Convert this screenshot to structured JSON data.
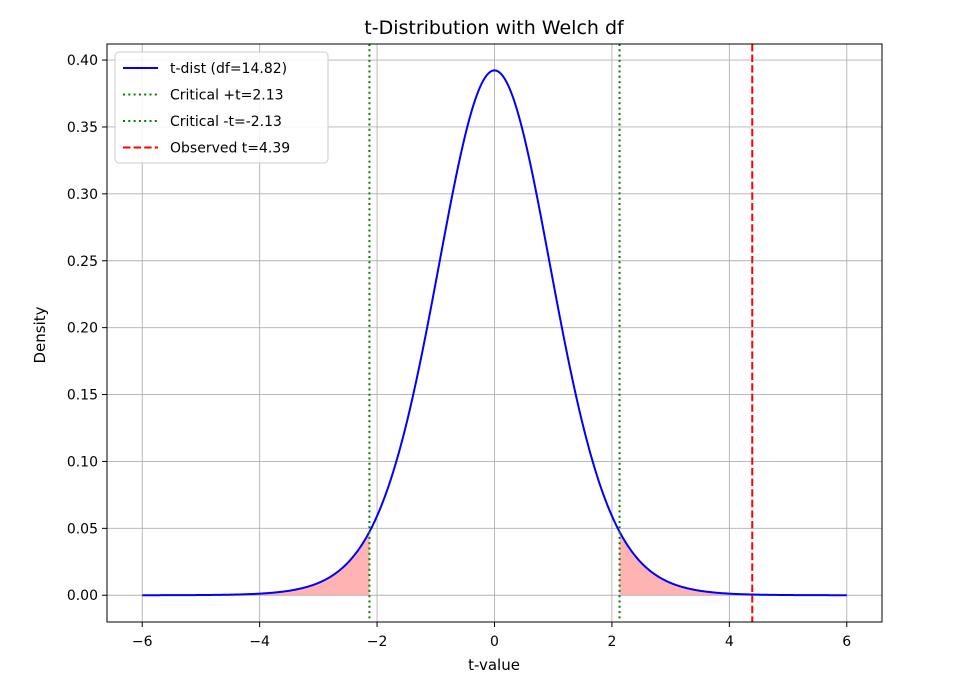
{
  "chart_data": {
    "type": "line",
    "title": "t-Distribution with Welch df",
    "xlabel": "t-value",
    "ylabel": "Density",
    "xlim": [
      -6.6,
      6.6
    ],
    "ylim": [
      -0.02,
      0.412
    ],
    "xticks": [
      -6,
      -4,
      -2,
      0,
      2,
      4,
      6
    ],
    "xtick_labels": [
      "−6",
      "−4",
      "−2",
      "0",
      "2",
      "4",
      "6"
    ],
    "yticks": [
      0.0,
      0.05,
      0.1,
      0.15,
      0.2,
      0.25,
      0.3,
      0.35,
      0.4
    ],
    "ytick_labels": [
      "0.00",
      "0.05",
      "0.10",
      "0.15",
      "0.20",
      "0.25",
      "0.30",
      "0.35",
      "0.40"
    ],
    "grid": true,
    "legend_position": "top-left",
    "curve": {
      "name": "t-dist (df=14.82)",
      "df": 14.82,
      "x_range": [
        -6,
        6
      ],
      "color": "#0000ff",
      "peak_density": 0.392
    },
    "critical_lines": [
      {
        "name": "Critical +t=2.13",
        "x": 2.13,
        "color": "#008000",
        "style": "dotted"
      },
      {
        "name": "Critical -t=-2.13",
        "x": -2.13,
        "color": "#008000",
        "style": "dotted"
      }
    ],
    "observed_line": {
      "name": "Observed t=4.39",
      "x": 4.39,
      "color": "#ff0000",
      "style": "dashed"
    },
    "shaded_tails": {
      "color": "#ff9999",
      "lower": [
        -6,
        -2.13
      ],
      "upper": [
        2.13,
        6
      ]
    },
    "legend": [
      {
        "label": "t-dist (df=14.82)",
        "color": "#0000ff",
        "style": "solid"
      },
      {
        "label": "Critical +t=2.13",
        "color": "#008000",
        "style": "dotted"
      },
      {
        "label": "Critical -t=-2.13",
        "color": "#008000",
        "style": "dotted"
      },
      {
        "label": "Observed t=4.39",
        "color": "#ff0000",
        "style": "dashed"
      }
    ]
  }
}
